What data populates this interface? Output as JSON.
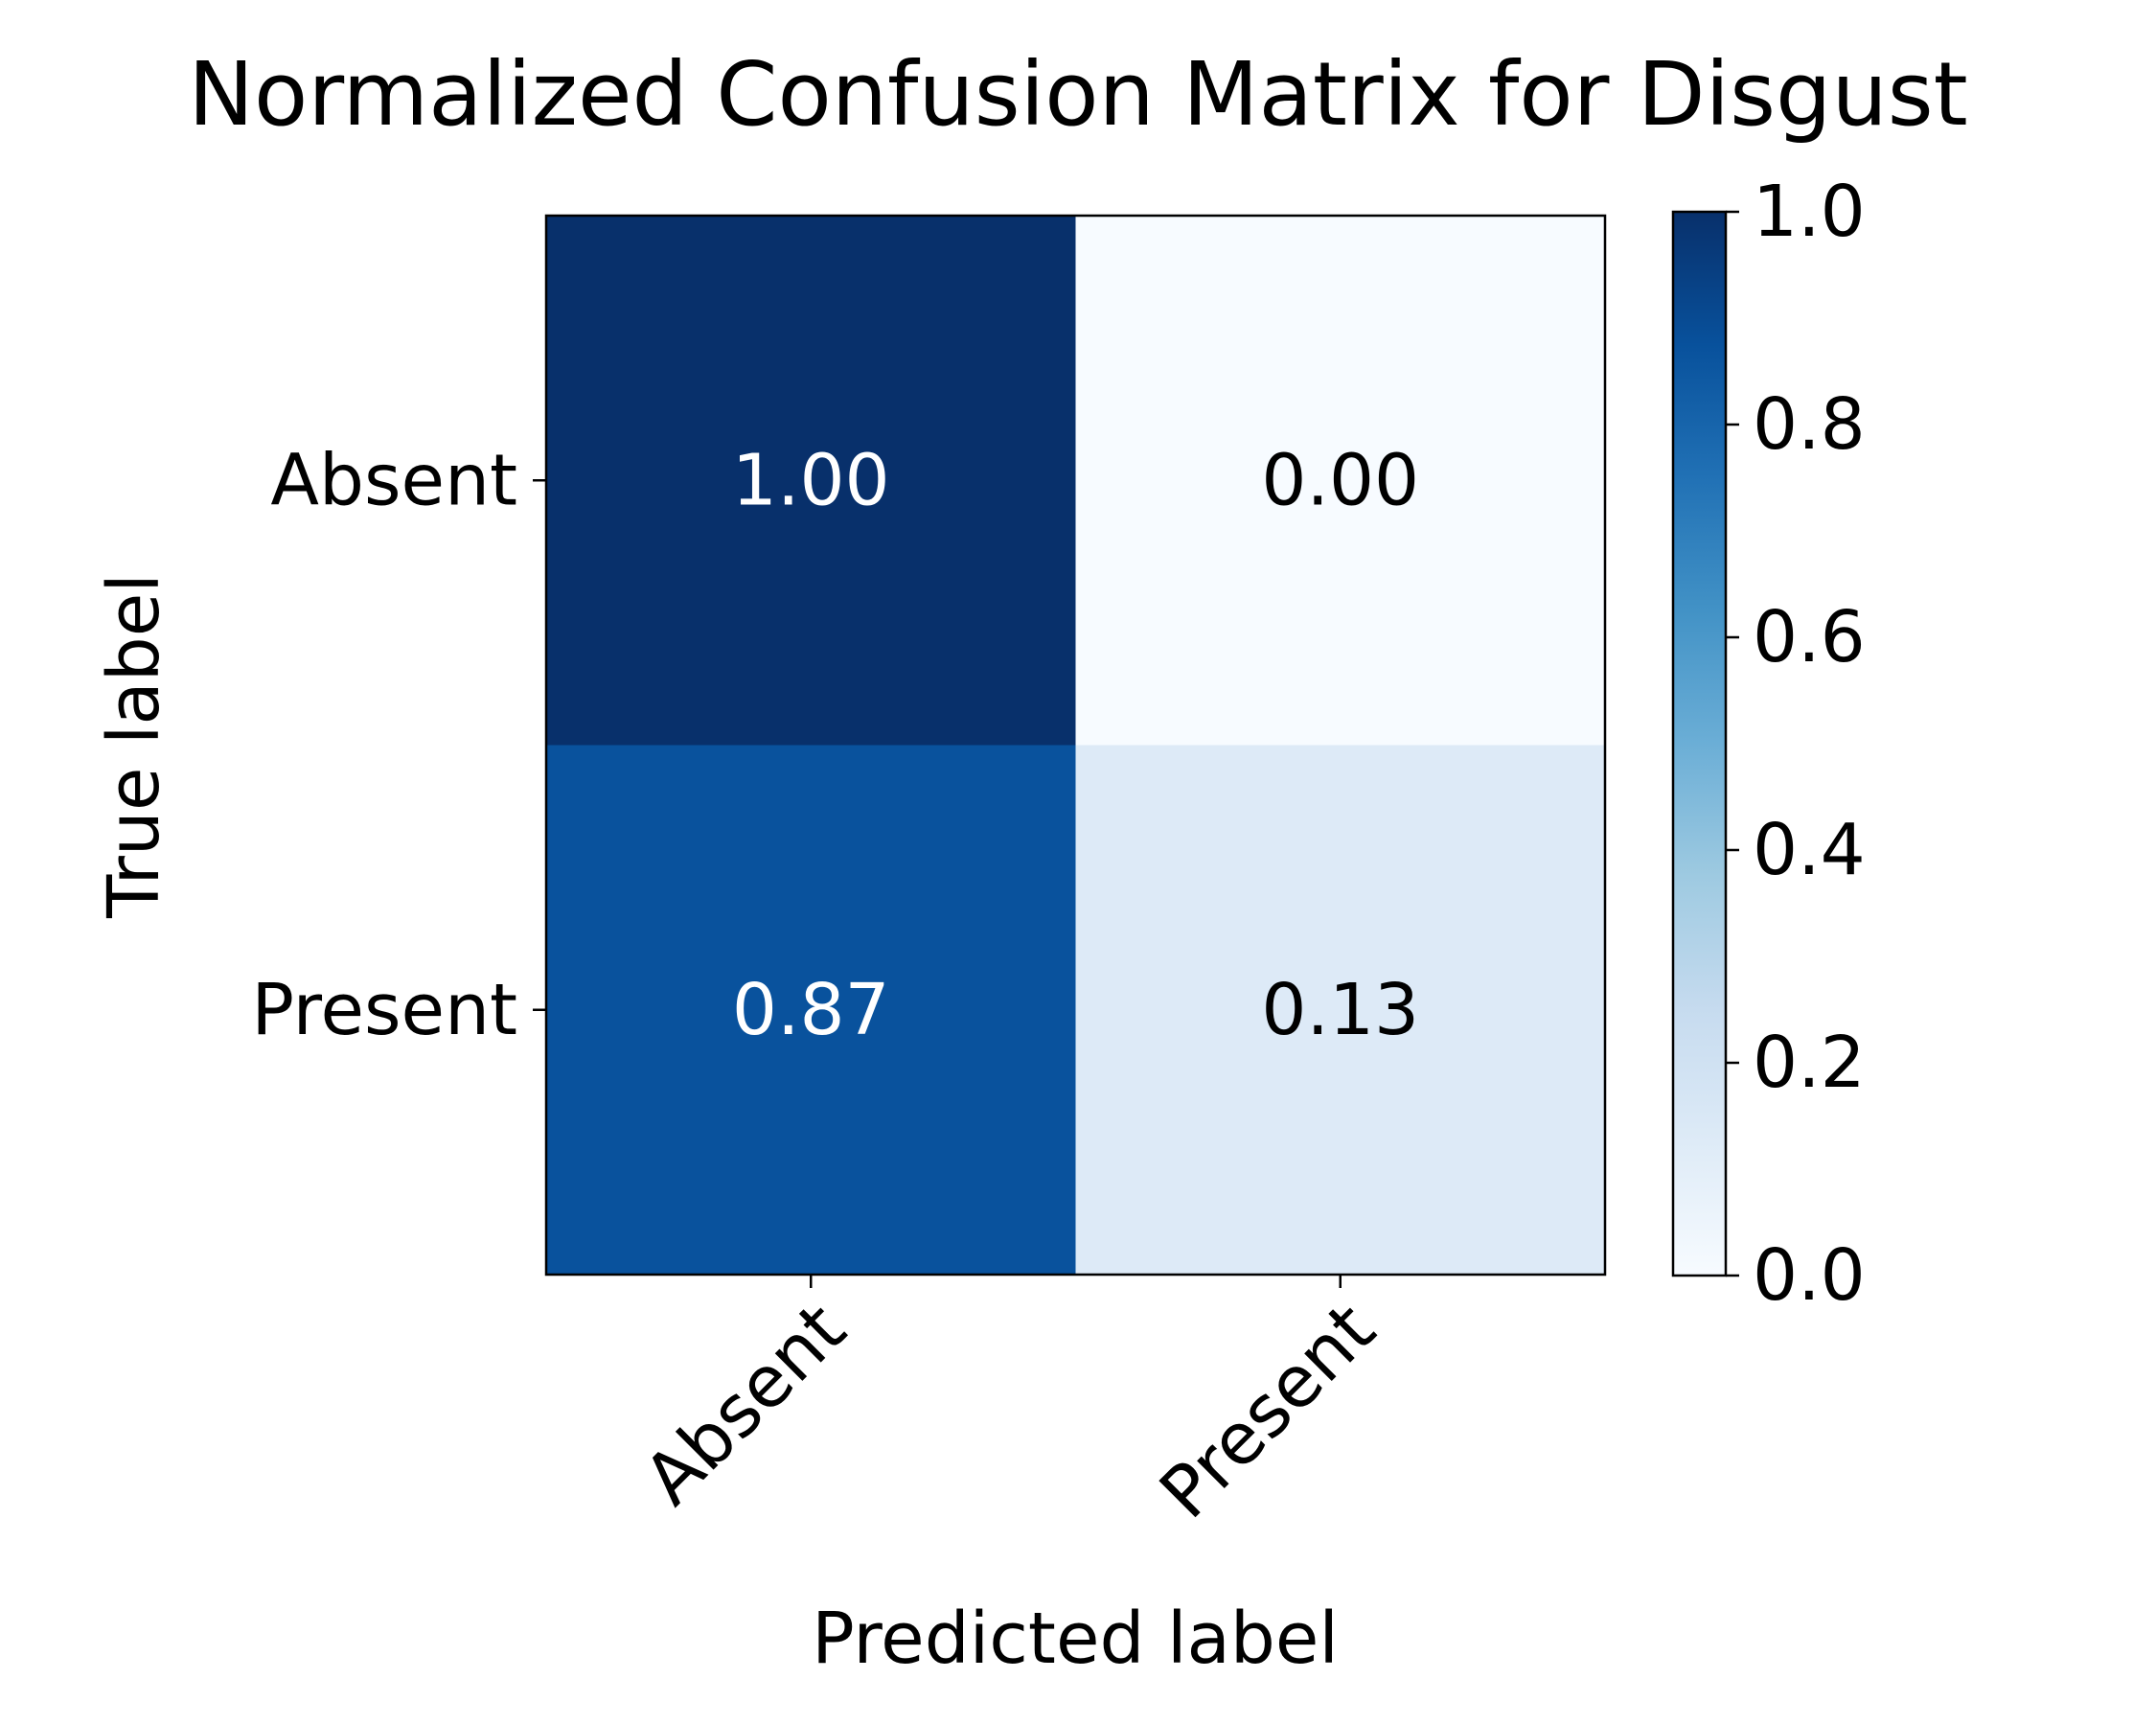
{
  "chart_data": {
    "type": "heatmap",
    "title": "Normalized Confusion Matrix for Disgust",
    "xlabel": "Predicted label",
    "ylabel": "True label",
    "x_categories": [
      "Absent",
      "Present"
    ],
    "y_categories": [
      "Absent",
      "Present"
    ],
    "values": [
      [
        1.0,
        0.0
      ],
      [
        0.87,
        0.13
      ]
    ],
    "cell_labels": [
      [
        "1.00",
        "0.00"
      ],
      [
        "0.87",
        "0.13"
      ]
    ],
    "colormap": "Blues",
    "colormap_stops": [
      "#f7fbff",
      "#deebf7",
      "#c6dbef",
      "#9ecae1",
      "#6baed6",
      "#4292c6",
      "#2171b5",
      "#08519c",
      "#08306b"
    ],
    "clim": [
      0,
      1
    ],
    "colorbar_ticks": [
      0.0,
      0.2,
      0.4,
      0.6,
      0.8,
      1.0
    ],
    "colorbar_tick_labels": [
      "0.0",
      "0.2",
      "0.4",
      "0.6",
      "0.8",
      "1.0"
    ],
    "label_color_dark": "#ffffff",
    "label_color_light": "#000000",
    "grid": false
  }
}
